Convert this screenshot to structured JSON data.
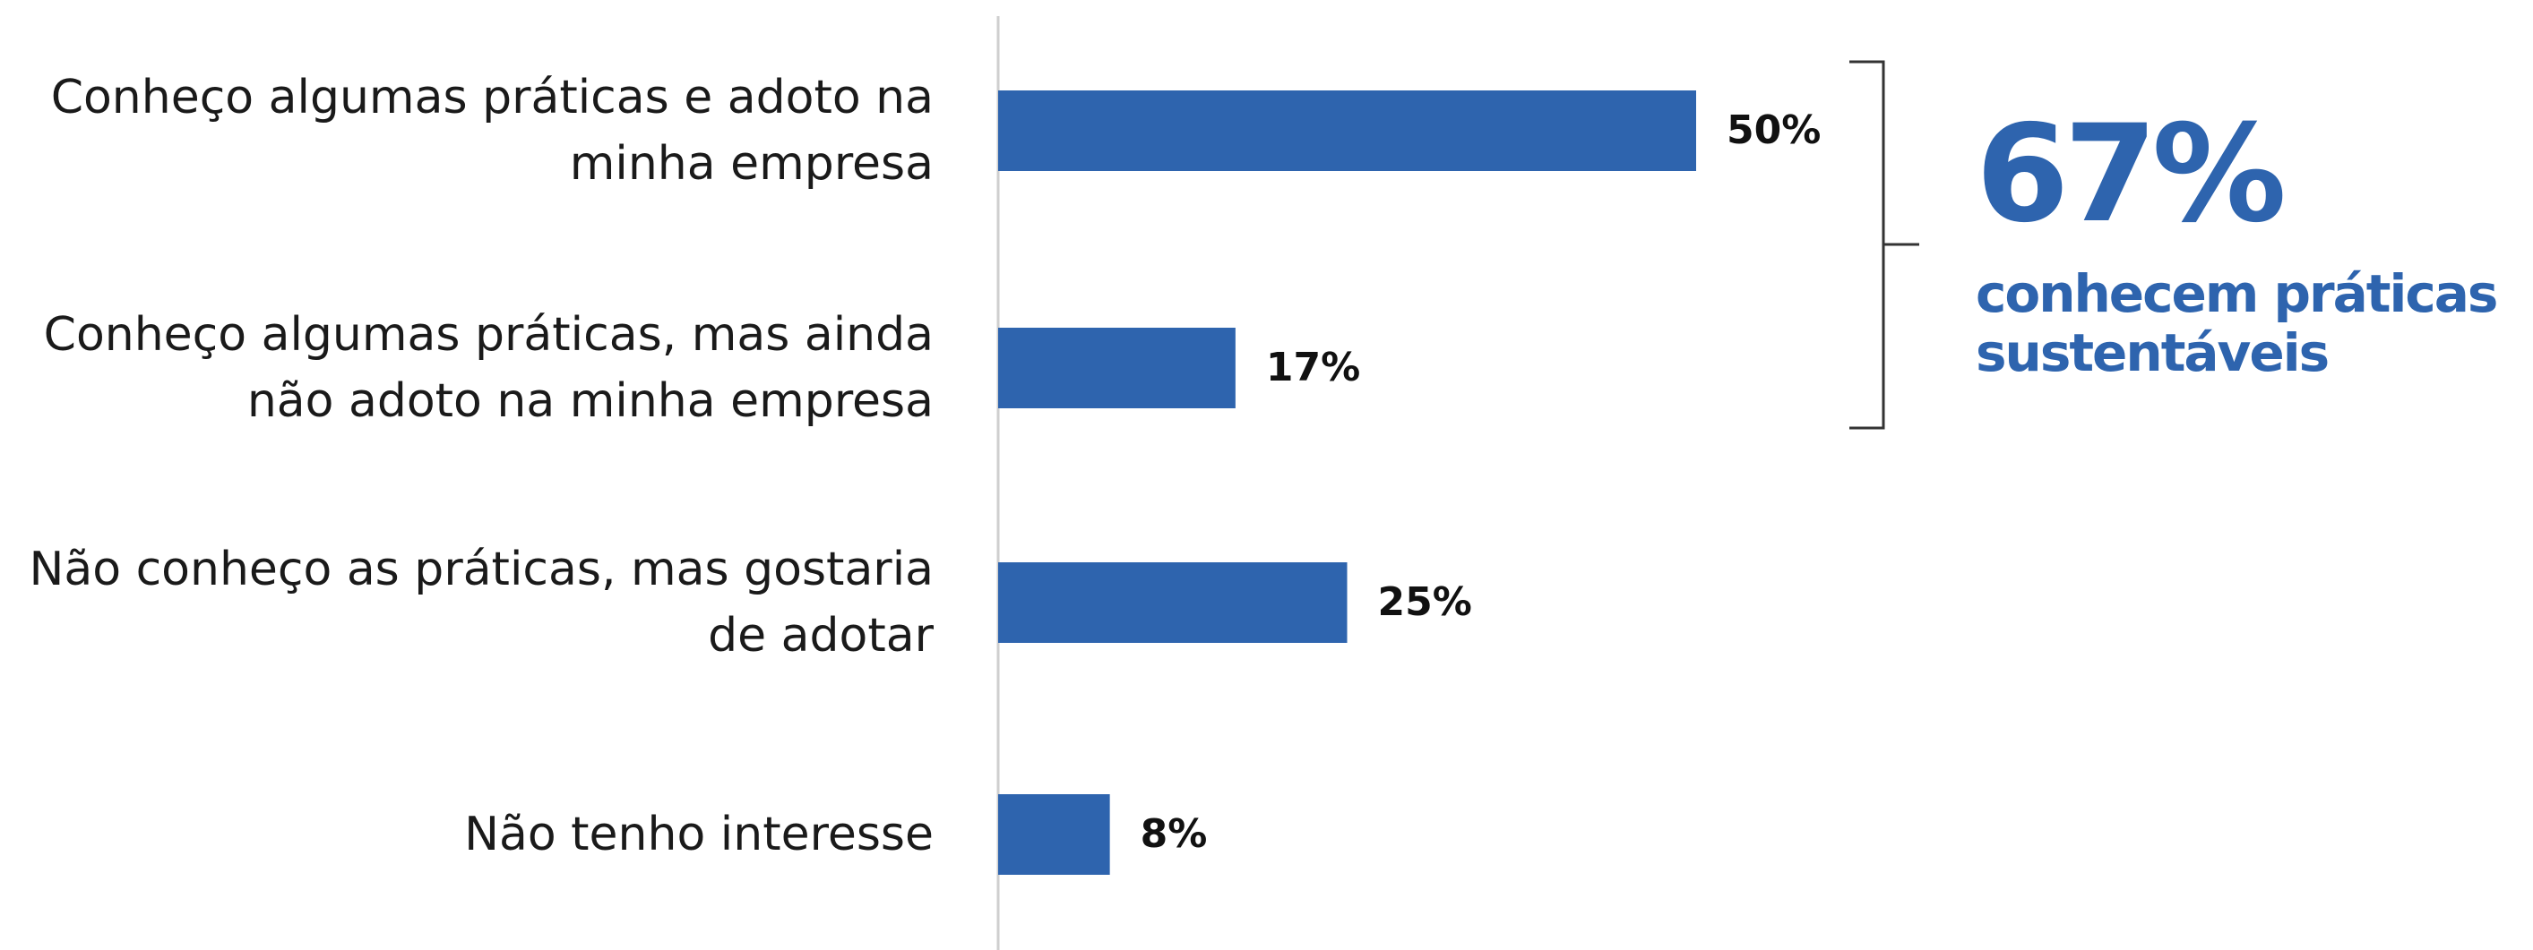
{
  "chart_data": {
    "type": "bar",
    "orientation": "horizontal",
    "categories": [
      "Conheço algumas práticas e adoto na minha empresa",
      "Conheço algumas práticas, mas ainda não adoto na minha empresa",
      "Não conheço as práticas, mas gostaria de adotar",
      "Não tenho interesse"
    ],
    "values": [
      50,
      17,
      25,
      8
    ],
    "value_labels": [
      "50%",
      "17%",
      "25%",
      "8%"
    ],
    "color": "#2e64ae",
    "xlim": [
      0,
      100
    ],
    "annotation": {
      "value": 67,
      "value_label": "67%",
      "text": "conhecem práticas sustentáveis",
      "color": "#2e64ae"
    }
  }
}
